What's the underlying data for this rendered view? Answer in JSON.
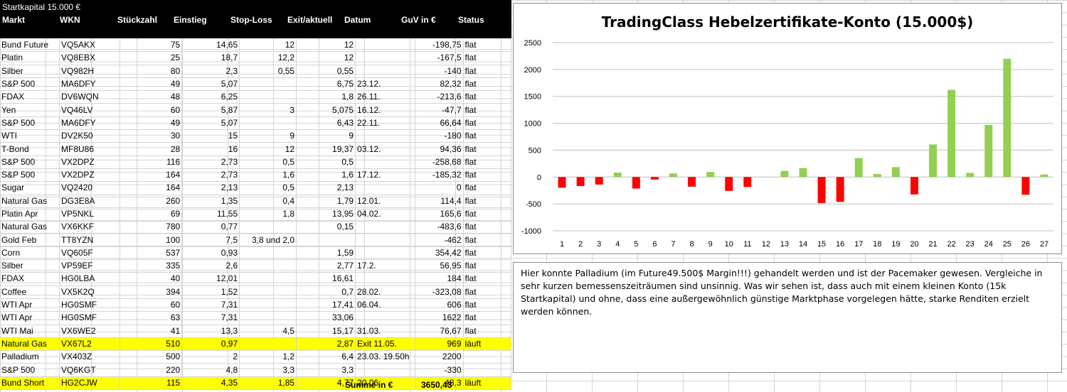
{
  "sheet": {
    "caption": "Startkapital 15.000 €",
    "columns": [
      "Markt",
      "WKN",
      "Stückzahl",
      "Einstieg",
      "Stop-Loss",
      "Exit/aktuell",
      "Datum",
      "GuV in €",
      "Status"
    ],
    "rows": [
      [
        "Bund Future",
        "VQ5AKX",
        "75",
        "14,65",
        "12",
        "12",
        "",
        "-198,75",
        "flat"
      ],
      [
        "Platin",
        "VQ8EBX",
        "25",
        "18,7",
        "12,2",
        "12",
        "",
        "-167,5",
        "flat"
      ],
      [
        "Silber",
        "VQ982H",
        "80",
        "2,3",
        "0,55",
        "0,55",
        "",
        "-140",
        "flat"
      ],
      [
        "S&P 500",
        "MA6DFY",
        "49",
        "5,07",
        "",
        "6,75",
        "23.12.",
        "82,32",
        "flat"
      ],
      [
        "FDAX",
        "DV6WQN",
        "48",
        "6,25",
        "",
        "1,8",
        "26.11.",
        "-213,6",
        "flat"
      ],
      [
        "Yen",
        "VQ46LV",
        "60",
        "5,87",
        "3",
        "5,075",
        "16.12.",
        "-47,7",
        "flat"
      ],
      [
        "S&P 500",
        "MA6DFY",
        "49",
        "5,07",
        "",
        "6,43",
        "22.11.",
        "66,64",
        "flat"
      ],
      [
        "WTI",
        "DV2K50",
        "30",
        "15",
        "9",
        "9",
        "",
        "-180",
        "flat"
      ],
      [
        "T-Bond",
        "MF8U86",
        "28",
        "16",
        "12",
        "19,37",
        "03.12.",
        "94,36",
        "flat"
      ],
      [
        "S&P 500",
        "VX2DPZ",
        "116",
        "2,73",
        "0,5",
        "0,5",
        "",
        "-258,68",
        "flat"
      ],
      [
        "S&P 500",
        "VX2DPZ",
        "164",
        "2,73",
        "1,6",
        "1,6",
        "17.12.",
        "-185,32",
        "flat"
      ],
      [
        "Sugar",
        "VQ2420",
        "164",
        "2,13",
        "0,5",
        "2,13",
        "",
        "0",
        "flat"
      ],
      [
        "Natural Gas",
        "DG3E8A",
        "260",
        "1,35",
        "0,4",
        "1,79",
        "12.01.",
        "114,4",
        "flat"
      ],
      [
        "Platin Apr",
        "VP5NKL",
        "69",
        "11,55",
        "1,8",
        "13,95",
        "04.02.",
        "165,6",
        "flat"
      ],
      [
        "Natural Gas",
        "VX6KKF",
        "780",
        "0,77",
        "",
        "0,15",
        "",
        "-483,6",
        "flat"
      ],
      [
        "Gold Feb",
        "TT8YZN",
        "100",
        "7,5",
        "3,8 und 2,0",
        "",
        "",
        "-462",
        "flat"
      ],
      [
        "Corn",
        "VQ605F",
        "537",
        "0,93",
        "",
        "1,59",
        "",
        "354,42",
        "flat"
      ],
      [
        "Silber",
        "VP59EF",
        "335",
        "2,6",
        "",
        "2,77",
        "17.2.",
        "56,95",
        "flat"
      ],
      [
        "FDAX",
        "HG0LBA",
        "40",
        "12,01",
        "",
        "16,61",
        "",
        "184",
        "flat"
      ],
      [
        "Coffee",
        "VX5K2Q",
        "394",
        "1,52",
        "",
        "0,7",
        "28.02.",
        "-323,08",
        "flat"
      ],
      [
        "WTI Apr",
        "HG0SMF",
        "60",
        "7,31",
        "",
        "17,41",
        "06.04.",
        "606",
        "flat"
      ],
      [
        "WTI Apr",
        "HG0SMF",
        "63",
        "7,31",
        "",
        "33,06",
        "",
        "1622",
        "flat"
      ],
      [
        "WTI Mai",
        "VX6WE2",
        "41",
        "13,3",
        "4,5",
        "15,17",
        "31.03.",
        "76,67",
        "flat"
      ],
      [
        "Natural Gas",
        "VX67L2",
        "510",
        "0,97",
        "",
        "2,87",
        "Exit 11.05.",
        "969",
        "läuft"
      ],
      [
        "Palladium",
        "VX403Z",
        "500",
        "2",
        "1,2",
        "6,4",
        "23.03. 19.50h",
        "2200",
        ""
      ],
      [
        "S&P 500",
        "VQ6KGT",
        "220",
        "4,8",
        "3,3",
        "3,3",
        "",
        "-330",
        ""
      ],
      [
        "Bund Short",
        "HG2CJW",
        "115",
        "4,35",
        "1,85",
        "4,77",
        "20.06.",
        "48,3",
        "läuft"
      ]
    ],
    "highlight_color": "#ffff00",
    "sum_label": "Summe in €",
    "sum_value": "3650,43"
  },
  "chart_data": {
    "type": "bar",
    "title": "TradingClass Hebelzertifikate-Konto (15.000$)",
    "categories": [
      "1",
      "2",
      "3",
      "4",
      "5",
      "6",
      "7",
      "8",
      "9",
      "10",
      "11",
      "12",
      "13",
      "14",
      "15",
      "16",
      "17",
      "18",
      "19",
      "20",
      "21",
      "22",
      "23",
      "24",
      "25",
      "26",
      "27"
    ],
    "values": [
      -198.75,
      -167.5,
      -140,
      82.32,
      -213.6,
      -47.7,
      66.64,
      -180,
      94.36,
      -258.68,
      -185.32,
      0,
      114.4,
      165.6,
      -483.6,
      -462,
      354.42,
      56.95,
      184,
      -323.08,
      606,
      1622,
      76.67,
      969,
      2200,
      -330,
      48.3
    ],
    "ylim": [
      -1000,
      2500
    ],
    "yticks": [
      -1000,
      -500,
      0,
      500,
      1000,
      1500,
      2000,
      2500
    ],
    "grid": true,
    "positive_color": "#92d050",
    "negative_color": "#ff0000"
  },
  "note": {
    "text": "Hier konnte Palladium (im Future49.500$ Margin!!!) gehandelt werden und ist der Pacemaker gewesen.  Vergleiche in sehr kurzen bemessenszeiträumen sind unsinnig. Was wir sehen ist, dass  auch mit einem kleinen Konto (15k Startkapital) und ohne, dass eine außergewöhnlich günstige Marktphase vorgelegen hätte, starke Renditen erzielt werden können."
  }
}
